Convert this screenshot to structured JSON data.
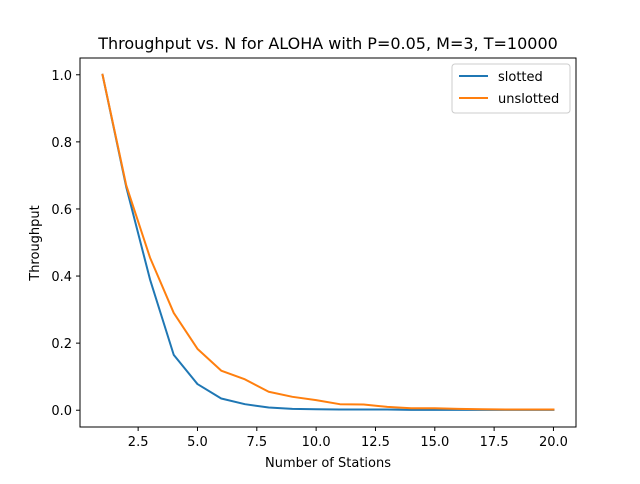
{
  "chart_data": {
    "type": "line",
    "title": "Throughput vs. N for ALOHA with P=0.05, M=3, T=10000",
    "xlabel": "Number of Stations",
    "ylabel": "Throughput",
    "xlim": [
      0.05,
      20.95
    ],
    "ylim": [
      -0.05,
      1.05
    ],
    "xticks": [
      2.5,
      5.0,
      7.5,
      10.0,
      12.5,
      15.0,
      17.5,
      20.0
    ],
    "xtick_labels": [
      "2.5",
      "5.0",
      "7.5",
      "10.0",
      "12.5",
      "15.0",
      "17.5",
      "20.0"
    ],
    "yticks": [
      0.0,
      0.2,
      0.4,
      0.6,
      0.8,
      1.0
    ],
    "ytick_labels": [
      "0.0",
      "0.2",
      "0.4",
      "0.6",
      "0.8",
      "1.0"
    ],
    "grid": false,
    "legend_position": "top-right",
    "x": [
      1,
      2,
      3,
      4,
      5,
      6,
      7,
      8,
      9,
      10,
      11,
      12,
      13,
      14,
      15,
      16,
      17,
      18,
      19,
      20
    ],
    "series": [
      {
        "name": "slotted",
        "color": "#1f77b4",
        "values": [
          1.0,
          0.665,
          0.39,
          0.165,
          0.078,
          0.035,
          0.018,
          0.008,
          0.004,
          0.003,
          0.002,
          0.002,
          0.002,
          0.001,
          0.001,
          0.001,
          0.001,
          0.001,
          0.001,
          0.001
        ]
      },
      {
        "name": "unslotted",
        "color": "#ff7f0e",
        "values": [
          1.0,
          0.67,
          0.455,
          0.29,
          0.183,
          0.118,
          0.092,
          0.055,
          0.04,
          0.03,
          0.018,
          0.017,
          0.01,
          0.006,
          0.006,
          0.004,
          0.003,
          0.002,
          0.002,
          0.002
        ]
      }
    ]
  }
}
